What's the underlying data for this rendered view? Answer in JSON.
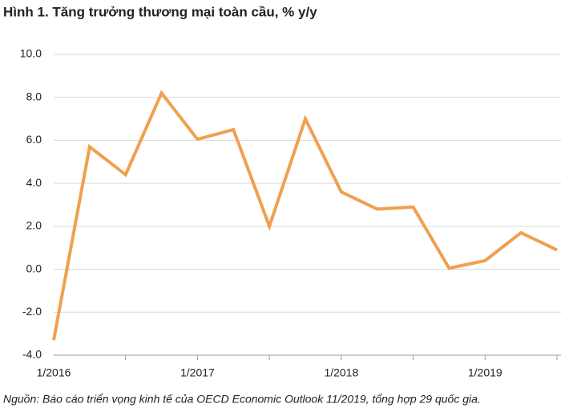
{
  "chart_data": {
    "type": "line",
    "title": "Hình 1. Tăng trưởng thương mại toàn cầu, % y/y",
    "source": "Nguồn: Báo cáo triển vọng kinh tế của OECD Economic Outlook 11/2019, tổng hợp 29 quốc gia.",
    "categories": [
      "1/2016",
      null,
      null,
      null,
      "1/2017",
      null,
      null,
      null,
      "1/2018",
      null,
      null,
      null,
      "1/2019",
      null,
      null
    ],
    "values": [
      -3.3,
      5.7,
      4.4,
      8.2,
      6.05,
      6.5,
      2.0,
      7.0,
      3.6,
      2.8,
      2.9,
      0.05,
      0.4,
      1.7,
      0.9
    ],
    "color": "#f0a050",
    "ylim": [
      -4,
      10
    ],
    "yticks": [
      {
        "value": -4,
        "label": "-4.0"
      },
      {
        "value": -2,
        "label": "-2.0"
      },
      {
        "value": 0,
        "label": "0.0"
      },
      {
        "value": 2,
        "label": "2.0"
      },
      {
        "value": 4,
        "label": "4.0"
      },
      {
        "value": 6,
        "label": "6.0"
      },
      {
        "value": 8,
        "label": "8.0"
      },
      {
        "value": 10,
        "label": "10.0"
      }
    ],
    "grid": true
  }
}
